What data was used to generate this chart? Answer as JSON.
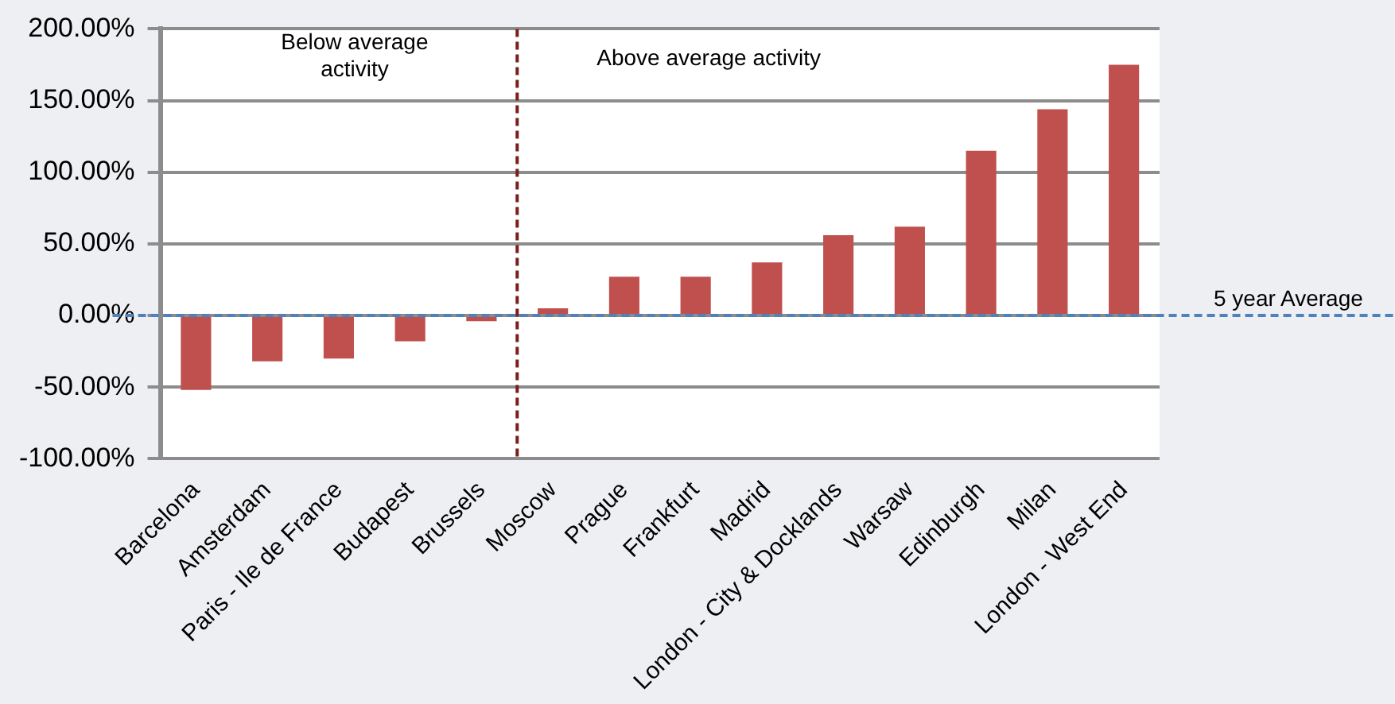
{
  "chart_data": {
    "type": "bar",
    "categories": [
      "Barcelona",
      "Amsterdam",
      "Paris - Ile de France",
      "Budapest",
      "Brussels",
      "Moscow",
      "Prague",
      "Frankfurt",
      "Madrid",
      "London - City & Docklands",
      "Warsaw",
      "Edinburgh",
      "Milan",
      "London - West End"
    ],
    "values": [
      -52,
      -32,
      -30,
      -18,
      -4,
      5,
      27,
      27,
      37,
      56,
      62,
      115,
      144,
      175
    ],
    "color": "#c0504d",
    "ylim": [
      -100,
      200
    ],
    "yticks": [
      {
        "value": -100,
        "label": "-100.00%"
      },
      {
        "value": -50,
        "label": "-50.00%"
      },
      {
        "value": 0,
        "label": "0.00%"
      },
      {
        "value": 50,
        "label": "50.00%"
      },
      {
        "value": 100,
        "label": "100.00%"
      },
      {
        "value": 150,
        "label": "150.00%"
      },
      {
        "value": 200,
        "label": "200.00%"
      }
    ],
    "grid": "y",
    "legend": false,
    "ref_lines": [
      {
        "axis": "y",
        "value": 0,
        "label": "5 year Average",
        "color": "#4f81bd",
        "line_style": "dashed"
      },
      {
        "axis": "x",
        "value": "Brussels",
        "color": "#7b1e1e",
        "line_style": "dashed"
      }
    ],
    "annotations": [
      "Below average activity",
      "Above average activity"
    ]
  }
}
